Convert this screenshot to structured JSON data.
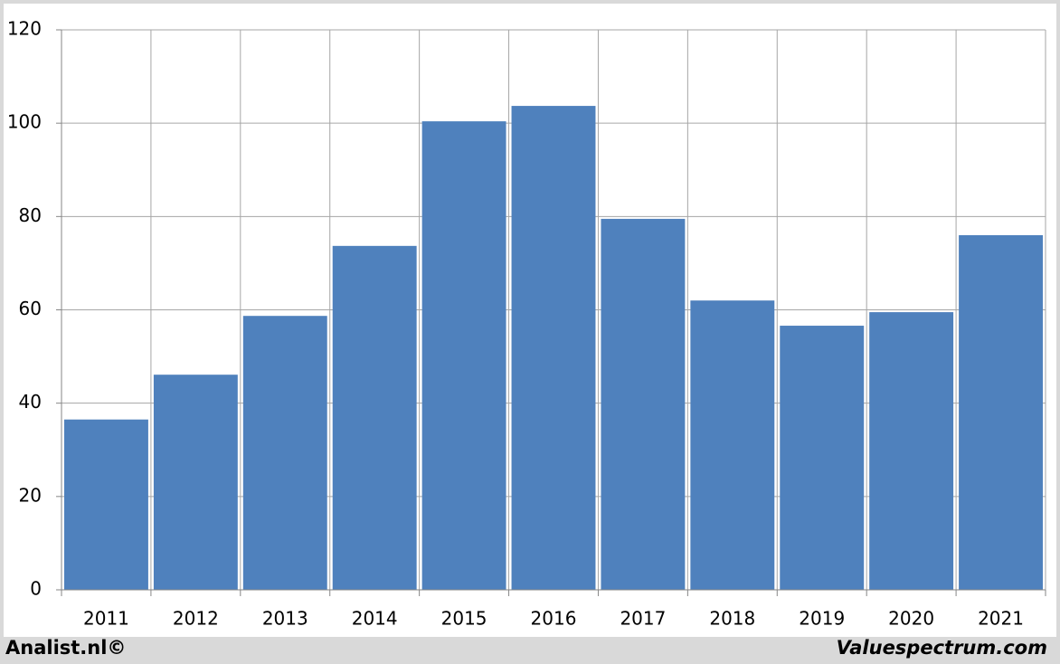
{
  "chart_data": {
    "type": "bar",
    "categories": [
      "2011",
      "2012",
      "2013",
      "2014",
      "2015",
      "2016",
      "2017",
      "2018",
      "2019",
      "2020",
      "2021"
    ],
    "values": [
      36.5,
      46.1,
      58.7,
      73.7,
      100.4,
      103.7,
      79.5,
      62.0,
      56.6,
      59.5,
      76.0
    ],
    "color": "#4f81bd",
    "ylim": [
      0,
      120
    ],
    "yticks": [
      0,
      20,
      40,
      60,
      80,
      100,
      120
    ],
    "grid": true,
    "watermarks": [
      "Analist.nl©",
      "Valuespectrum.com"
    ]
  }
}
